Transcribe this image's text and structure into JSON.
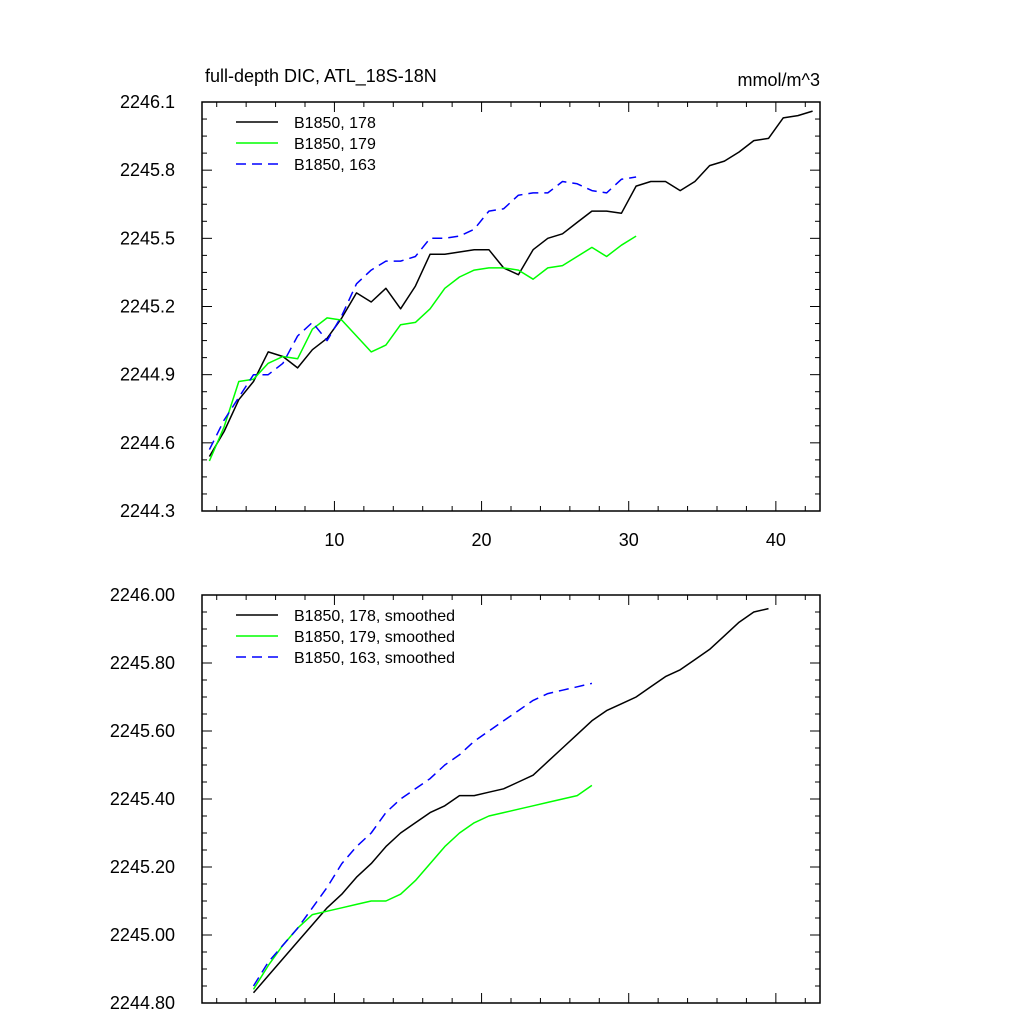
{
  "chart_data": [
    {
      "type": "line",
      "title": "full-depth DIC, ATL_18S-18N",
      "units": "mmol/m^3",
      "xlim": [
        1,
        43
      ],
      "ylim": [
        2244.3,
        2246.1
      ],
      "x_ticks": [
        10,
        20,
        30,
        40
      ],
      "x_tick_labels": [
        "10",
        "20",
        "30",
        "40"
      ],
      "y_ticks": [
        2244.3,
        2244.6,
        2244.9,
        2245.2,
        2245.5,
        2245.8,
        2246.1
      ],
      "y_tick_labels": [
        "2244.3",
        "2244.6",
        "2244.9",
        "2245.2",
        "2245.5",
        "2245.8",
        "2246.1"
      ],
      "legend_position": "top-left",
      "series": [
        {
          "name": "B1850, 178",
          "color": "#000000",
          "dash": "solid",
          "x": [
            1.5,
            2.5,
            3.5,
            4.5,
            5.5,
            6.5,
            7.5,
            8.5,
            9.5,
            10.5,
            11.5,
            12.5,
            13.5,
            14.5,
            15.5,
            16.5,
            17.5,
            18.5,
            19.5,
            20.5,
            21.5,
            22.5,
            23.5,
            24.5,
            25.5,
            26.5,
            27.5,
            28.5,
            29.5,
            30.5,
            31.5,
            32.5,
            33.5,
            34.5,
            35.5,
            36.5,
            37.5,
            38.5,
            39.5,
            40.5,
            41.5,
            42.5
          ],
          "y": [
            2244.54,
            2244.65,
            2244.79,
            2244.87,
            2245.0,
            2244.98,
            2244.93,
            2245.01,
            2245.06,
            2245.15,
            2245.26,
            2245.22,
            2245.28,
            2245.19,
            2245.29,
            2245.43,
            2245.43,
            2245.44,
            2245.45,
            2245.45,
            2245.37,
            2245.34,
            2245.45,
            2245.5,
            2245.52,
            2245.57,
            2245.62,
            2245.62,
            2245.61,
            2245.73,
            2245.75,
            2245.75,
            2245.71,
            2245.75,
            2245.82,
            2245.84,
            2245.88,
            2245.93,
            2245.94,
            2246.03,
            2246.04,
            2246.06
          ]
        },
        {
          "name": "B1850, 179",
          "color": "#00ff00",
          "dash": "solid",
          "x": [
            1.5,
            2.5,
            3.5,
            4.5,
            5.5,
            6.5,
            7.5,
            8.5,
            9.5,
            10.5,
            11.5,
            12.5,
            13.5,
            14.5,
            15.5,
            16.5,
            17.5,
            18.5,
            19.5,
            20.5,
            21.5,
            22.5,
            23.5,
            24.5,
            25.5,
            26.5,
            27.5,
            28.5,
            29.5,
            30.5
          ],
          "y": [
            2244.52,
            2244.67,
            2244.87,
            2244.88,
            2244.95,
            2244.98,
            2244.97,
            2245.1,
            2245.15,
            2245.14,
            2245.07,
            2245.0,
            2245.03,
            2245.12,
            2245.13,
            2245.19,
            2245.28,
            2245.33,
            2245.36,
            2245.37,
            2245.37,
            2245.36,
            2245.32,
            2245.37,
            2245.38,
            2245.42,
            2245.46,
            2245.42,
            2245.47,
            2245.51
          ]
        },
        {
          "name": "B1850, 163",
          "color": "#0000ff",
          "dash": "dashed",
          "x": [
            1.5,
            2.5,
            3.5,
            4.5,
            5.5,
            6.5,
            7.5,
            8.5,
            9.5,
            10.5,
            11.5,
            12.5,
            13.5,
            14.5,
            15.5,
            16.5,
            17.5,
            18.5,
            19.5,
            20.5,
            21.5,
            22.5,
            23.5,
            24.5,
            25.5,
            26.5,
            27.5,
            28.5,
            29.5,
            30.5
          ],
          "y": [
            2244.57,
            2244.7,
            2244.8,
            2244.9,
            2244.9,
            2244.95,
            2245.07,
            2245.13,
            2245.05,
            2245.16,
            2245.3,
            2245.36,
            2245.4,
            2245.4,
            2245.42,
            2245.5,
            2245.5,
            2245.51,
            2245.54,
            2245.62,
            2245.63,
            2245.69,
            2245.7,
            2245.7,
            2245.75,
            2245.74,
            2245.71,
            2245.7,
            2245.76,
            2245.77
          ]
        }
      ]
    },
    {
      "type": "line",
      "xlim": [
        1,
        43
      ],
      "ylim": [
        2244.8,
        2246.0
      ],
      "x_ticks": [
        10,
        20,
        30,
        40
      ],
      "y_ticks": [
        2244.8,
        2245.0,
        2245.2,
        2245.4,
        2245.6,
        2245.8,
        2246.0
      ],
      "y_tick_labels": [
        "2244.80",
        "2245.00",
        "2245.20",
        "2245.40",
        "2245.60",
        "2245.80",
        "2246.00"
      ],
      "legend_position": "top-left",
      "series": [
        {
          "name": "B1850, 178, smoothed",
          "color": "#000000",
          "dash": "solid",
          "x": [
            4.5,
            5.5,
            6.5,
            7.5,
            8.5,
            9.5,
            10.5,
            11.5,
            12.5,
            13.5,
            14.5,
            15.5,
            16.5,
            17.5,
            18.5,
            19.5,
            20.5,
            21.5,
            22.5,
            23.5,
            24.5,
            25.5,
            26.5,
            27.5,
            28.5,
            29.5,
            30.5,
            31.5,
            32.5,
            33.5,
            34.5,
            35.5,
            36.5,
            37.5,
            38.5,
            39.5
          ],
          "y": [
            2244.83,
            2244.88,
            2244.93,
            2244.98,
            2245.03,
            2245.08,
            2245.12,
            2245.17,
            2245.21,
            2245.26,
            2245.3,
            2245.33,
            2245.36,
            2245.38,
            2245.41,
            2245.41,
            2245.42,
            2245.43,
            2245.45,
            2245.47,
            2245.51,
            2245.55,
            2245.59,
            2245.63,
            2245.66,
            2245.68,
            2245.7,
            2245.73,
            2245.76,
            2245.78,
            2245.81,
            2245.84,
            2245.88,
            2245.92,
            2245.95,
            2245.96
          ]
        },
        {
          "name": "B1850, 179, smoothed",
          "color": "#00ff00",
          "dash": "solid",
          "x": [
            4.5,
            5.5,
            6.5,
            7.5,
            8.5,
            9.5,
            10.5,
            11.5,
            12.5,
            13.5,
            14.5,
            15.5,
            16.5,
            17.5,
            18.5,
            19.5,
            20.5,
            21.5,
            22.5,
            23.5,
            24.5,
            25.5,
            26.5,
            27.5
          ],
          "y": [
            2244.84,
            2244.91,
            2244.97,
            2245.02,
            2245.06,
            2245.07,
            2245.08,
            2245.09,
            2245.1,
            2245.1,
            2245.12,
            2245.16,
            2245.21,
            2245.26,
            2245.3,
            2245.33,
            2245.35,
            2245.36,
            2245.37,
            2245.38,
            2245.39,
            2245.4,
            2245.41,
            2245.44
          ]
        },
        {
          "name": "B1850, 163, smoothed",
          "color": "#0000ff",
          "dash": "dashed",
          "x": [
            4.5,
            5.5,
            6.5,
            7.5,
            8.5,
            9.5,
            10.5,
            11.5,
            12.5,
            13.5,
            14.5,
            15.5,
            16.5,
            17.5,
            18.5,
            19.5,
            20.5,
            21.5,
            22.5,
            23.5,
            24.5,
            25.5,
            26.5,
            27.5
          ],
          "y": [
            2244.85,
            2244.92,
            2244.97,
            2245.02,
            2245.08,
            2245.14,
            2245.21,
            2245.26,
            2245.3,
            2245.36,
            2245.4,
            2245.43,
            2245.46,
            2245.5,
            2245.53,
            2245.57,
            2245.6,
            2245.63,
            2245.66,
            2245.69,
            2245.71,
            2245.72,
            2245.73,
            2245.74
          ]
        }
      ]
    }
  ]
}
